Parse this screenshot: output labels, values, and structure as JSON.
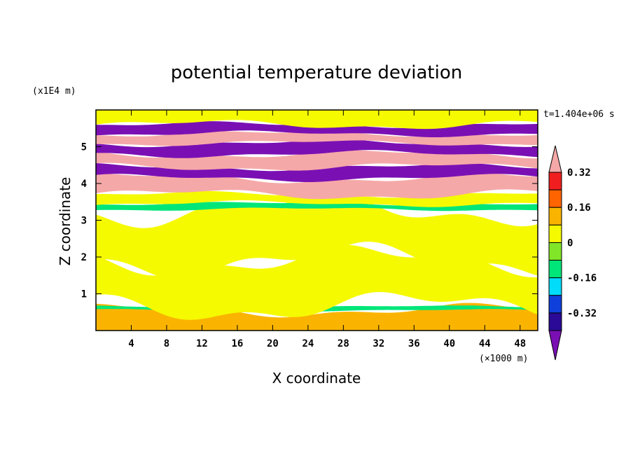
{
  "chart_data": {
    "type": "heatmap",
    "title": "potential temperature deviation",
    "xlabel": "X coordinate",
    "ylabel": "Z coordinate",
    "x_unit": "(×1000 m)",
    "y_unit": "(x1E4 m)",
    "time_label": "t=1.404e+06 s",
    "xlim": [
      0,
      50
    ],
    "ylim": [
      0,
      6
    ],
    "xticks": [
      "4",
      "8",
      "12",
      "16",
      "20",
      "24",
      "28",
      "32",
      "36",
      "40",
      "44",
      "48"
    ],
    "yticks": [
      "1",
      "2",
      "3",
      "4",
      "5"
    ],
    "colorbar": {
      "levels": [
        -0.4,
        -0.32,
        -0.24,
        -0.16,
        -0.08,
        0,
        0.08,
        0.16,
        0.24,
        0.32,
        0.4
      ],
      "labels": [
        "0.32",
        "0.16",
        "0",
        "-0.16",
        "-0.32"
      ],
      "colors": [
        "#7a10b4",
        "#2a0a96",
        "#1040dc",
        "#00dcfa",
        "#00e678",
        "#82e628",
        "#f5fa00",
        "#fab400",
        "#ff6400",
        "#f01e1e",
        "#f5a8a8"
      ]
    },
    "bands": [
      {
        "z0": 0.0,
        "z1": 0.55,
        "value": 0.12
      },
      {
        "z0": 0.55,
        "z1": 0.65,
        "value": -0.1
      },
      {
        "z0": 0.65,
        "z1": 1.9,
        "value": 0.02
      },
      {
        "z0": 1.9,
        "z1": 3.3,
        "value": 0.0
      },
      {
        "z0": 3.3,
        "z1": 3.45,
        "value": -0.1
      },
      {
        "z0": 3.45,
        "z1": 3.7,
        "value": 0.04
      },
      {
        "z0": 3.7,
        "z1": 4.15,
        "value": 0.45
      },
      {
        "z0": 4.15,
        "z1": 4.45,
        "value": -0.45
      },
      {
        "z0": 4.45,
        "z1": 4.8,
        "value": 0.45
      },
      {
        "z0": 4.8,
        "z1": 5.1,
        "value": -0.45
      },
      {
        "z0": 5.1,
        "z1": 5.35,
        "value": 0.45
      },
      {
        "z0": 5.35,
        "z1": 5.6,
        "value": -0.45
      },
      {
        "z0": 5.6,
        "z1": 6.0,
        "value": 0.02
      }
    ]
  }
}
